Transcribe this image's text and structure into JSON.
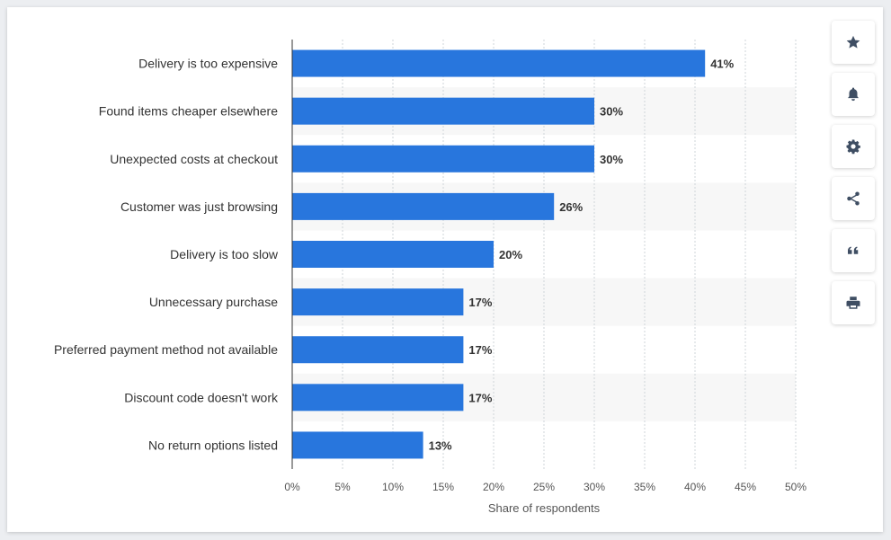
{
  "chart_data": {
    "type": "bar",
    "orientation": "horizontal",
    "categories": [
      "Delivery is too expensive",
      "Found items cheaper elsewhere",
      "Unexpected costs at checkout",
      "Customer was just browsing",
      "Delivery is too slow",
      "Unnecessary purchase",
      "Preferred payment method not available",
      "Discount code doesn't work",
      "No return options listed"
    ],
    "values": [
      41,
      30,
      30,
      26,
      20,
      17,
      17,
      17,
      13
    ],
    "value_labels": [
      "41%",
      "30%",
      "30%",
      "26%",
      "20%",
      "17%",
      "17%",
      "17%",
      "13%"
    ],
    "xlabel": "Share of respondents",
    "xlim": [
      0,
      50
    ],
    "x_ticks": [
      "0%",
      "5%",
      "10%",
      "15%",
      "20%",
      "25%",
      "30%",
      "35%",
      "40%",
      "45%",
      "50%"
    ],
    "grid": true,
    "bar_color": "#2876dd",
    "alt_row_color": "#f7f7f7"
  },
  "toolbar": {
    "icons": [
      "star-icon",
      "bell-icon",
      "gear-icon",
      "share-icon",
      "quote-icon",
      "print-icon"
    ],
    "icon_color": "#3f4e63"
  }
}
